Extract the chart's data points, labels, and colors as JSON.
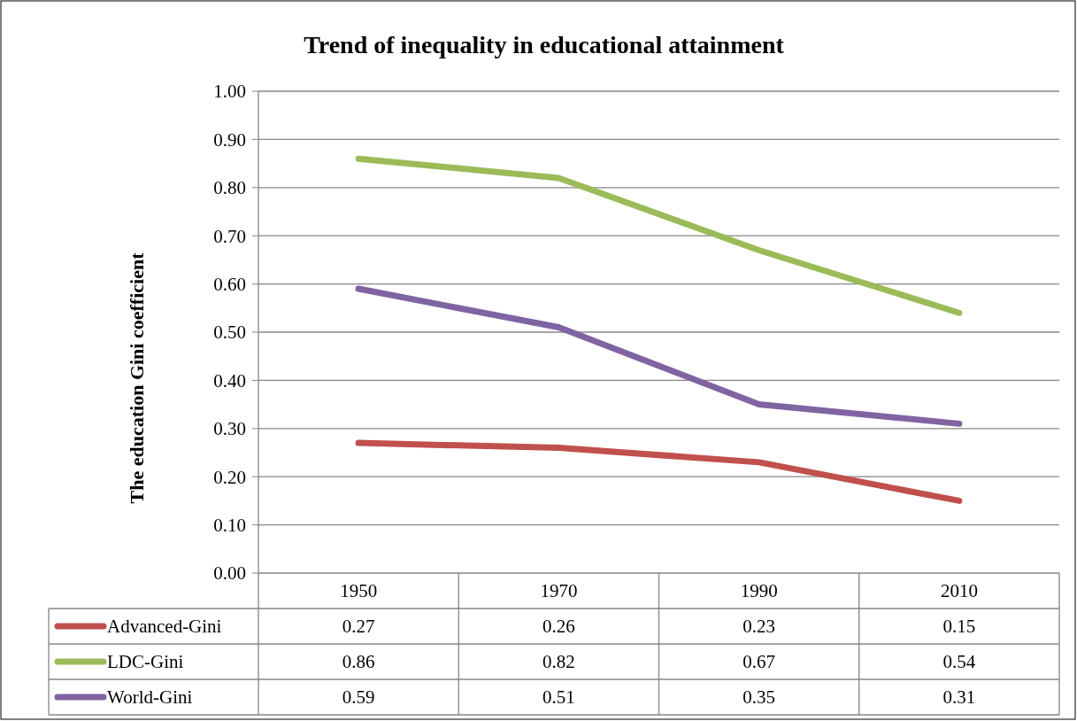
{
  "chart_data": {
    "type": "line",
    "title": "Trend of inequality in educational attainment",
    "ylabel": "The education Gini coefficient",
    "categories": [
      "1950",
      "1970",
      "1990",
      "2010"
    ],
    "series": [
      {
        "name": "Advanced-Gini",
        "color": "#c0504d",
        "values": [
          0.27,
          0.26,
          0.23,
          0.15
        ]
      },
      {
        "name": "LDC-Gini",
        "color": "#9bbb59",
        "values": [
          0.86,
          0.82,
          0.67,
          0.54
        ]
      },
      {
        "name": "World-Gini",
        "color": "#8064a2",
        "values": [
          0.59,
          0.51,
          0.35,
          0.31
        ]
      }
    ],
    "ylim": [
      0,
      1
    ],
    "yticks": [
      {
        "value": 0,
        "label": "0.00"
      },
      {
        "value": 0.1,
        "label": "0.10"
      },
      {
        "value": 0.2,
        "label": "0.20"
      },
      {
        "value": 0.3,
        "label": "0.30"
      },
      {
        "value": 0.4,
        "label": "0.40"
      },
      {
        "value": 0.5,
        "label": "0.50"
      },
      {
        "value": 0.6,
        "label": "0.60"
      },
      {
        "value": 0.7,
        "label": "0.70"
      },
      {
        "value": 0.8,
        "label": "0.80"
      },
      {
        "value": 0.9,
        "label": "0.90"
      },
      {
        "value": 1,
        "label": "1.00"
      }
    ],
    "grid": "y",
    "legend": "bottom",
    "data_labels": true,
    "marker": "none",
    "line_style": "solid"
  }
}
